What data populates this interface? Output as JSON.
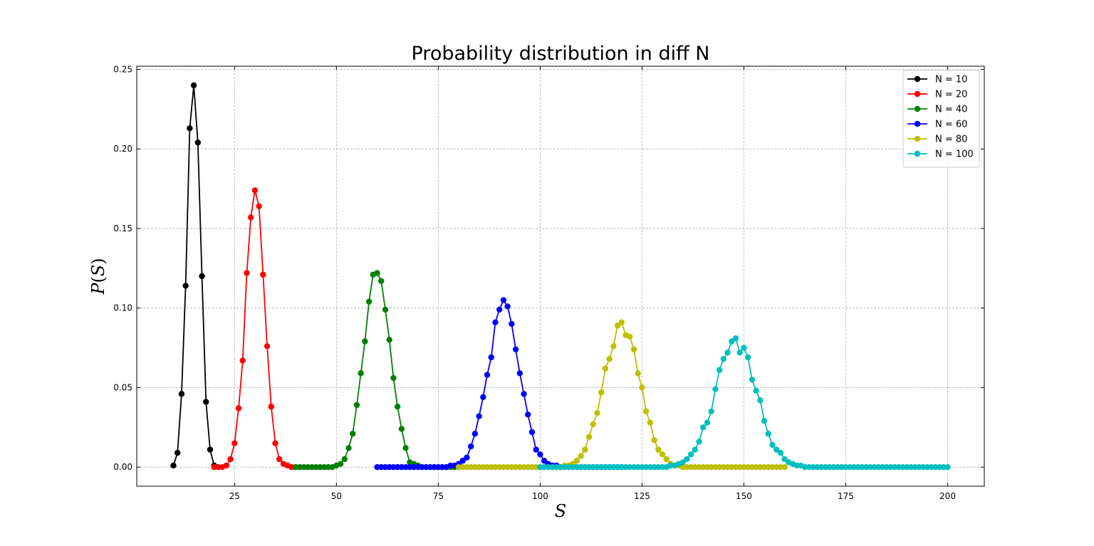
{
  "chart_data": {
    "type": "line",
    "title": "Probability distribution in diff N",
    "xlabel": "S",
    "ylabel": "P(S)",
    "xlim": [
      1,
      209
    ],
    "ylim": [
      -0.012,
      0.252
    ],
    "xticks": [
      25,
      50,
      75,
      100,
      125,
      150,
      175,
      200
    ],
    "yticks": [
      0.0,
      0.05,
      0.1,
      0.15,
      0.2,
      0.25
    ],
    "ytick_labels": [
      "0.00",
      "0.05",
      "0.10",
      "0.15",
      "0.20",
      "0.25"
    ],
    "grid": true,
    "legend_position": "top-right",
    "series": [
      {
        "name": "N = 10",
        "color": "#000000",
        "x_start": 10,
        "values": [
          0.001,
          0.009,
          0.046,
          0.114,
          0.213,
          0.24,
          0.204,
          0.12,
          0.041,
          0.011,
          0.001
        ]
      },
      {
        "name": "N = 20",
        "color": "#ff0000",
        "x_start": 20,
        "values": [
          0.0,
          0.0,
          0.0,
          0.001,
          0.005,
          0.015,
          0.037,
          0.067,
          0.122,
          0.157,
          0.174,
          0.164,
          0.121,
          0.076,
          0.038,
          0.015,
          0.005,
          0.002,
          0.001,
          0.0,
          0.0
        ]
      },
      {
        "name": "N = 40",
        "color": "#008000",
        "x_start": 40,
        "values": [
          0.0,
          0.0,
          0.0,
          0.0,
          0.0,
          0.0,
          0.0,
          0.0,
          0.0,
          0.0,
          0.001,
          0.002,
          0.005,
          0.012,
          0.021,
          0.039,
          0.059,
          0.079,
          0.104,
          0.121,
          0.122,
          0.117,
          0.099,
          0.08,
          0.056,
          0.038,
          0.024,
          0.012,
          0.003,
          0.002,
          0.001,
          0.0,
          0.0,
          0.0,
          0.0,
          0.0,
          0.0,
          0.0,
          0.0,
          0.0,
          0.0
        ]
      },
      {
        "name": "N = 60",
        "color": "#0000ff",
        "x_start": 60,
        "values": [
          0.0,
          0.0,
          0.0,
          0.0,
          0.0,
          0.0,
          0.0,
          0.0,
          0.0,
          0.0,
          0.0,
          0.0,
          0.0,
          0.0,
          0.0,
          0.0,
          0.0,
          0.0,
          0.001,
          0.001,
          0.002,
          0.004,
          0.006,
          0.013,
          0.021,
          0.032,
          0.044,
          0.058,
          0.069,
          0.091,
          0.099,
          0.105,
          0.101,
          0.09,
          0.074,
          0.059,
          0.046,
          0.033,
          0.022,
          0.011,
          0.008,
          0.004,
          0.002,
          0.001,
          0.001,
          0.0,
          0.0,
          0.0,
          0.0,
          0.0,
          0.0,
          0.0,
          0.0,
          0.0,
          0.0,
          0.0,
          0.0,
          0.0,
          0.0,
          0.0,
          0.0
        ]
      },
      {
        "name": "N = 80",
        "color": "#bfbf00",
        "x_start": 80,
        "values": [
          0.0,
          0.0,
          0.0,
          0.0,
          0.0,
          0.0,
          0.0,
          0.0,
          0.0,
          0.0,
          0.0,
          0.0,
          0.0,
          0.0,
          0.0,
          0.0,
          0.0,
          0.0,
          0.0,
          0.0,
          0.0,
          0.0,
          0.0,
          0.0,
          0.0,
          0.0,
          0.001,
          0.001,
          0.002,
          0.004,
          0.007,
          0.011,
          0.019,
          0.027,
          0.034,
          0.047,
          0.062,
          0.068,
          0.076,
          0.089,
          0.091,
          0.083,
          0.082,
          0.074,
          0.059,
          0.05,
          0.035,
          0.028,
          0.017,
          0.011,
          0.008,
          0.005,
          0.002,
          0.001,
          0.001,
          0.0,
          0.0,
          0.0,
          0.0,
          0.0,
          0.0,
          0.0,
          0.0,
          0.0,
          0.0,
          0.0,
          0.0,
          0.0,
          0.0,
          0.0,
          0.0,
          0.0,
          0.0,
          0.0,
          0.0,
          0.0,
          0.0,
          0.0,
          0.0,
          0.0,
          0.0
        ]
      },
      {
        "name": "N = 100",
        "color": "#00bfbf",
        "x_start": 100,
        "values": [
          0.0,
          0.0,
          0.0,
          0.0,
          0.0,
          0.0,
          0.0,
          0.0,
          0.0,
          0.0,
          0.0,
          0.0,
          0.0,
          0.0,
          0.0,
          0.0,
          0.0,
          0.0,
          0.0,
          0.0,
          0.0,
          0.0,
          0.0,
          0.0,
          0.0,
          0.0,
          0.0,
          0.0,
          0.0,
          0.0,
          0.0,
          0.0,
          0.001,
          0.001,
          0.002,
          0.003,
          0.005,
          0.008,
          0.011,
          0.016,
          0.025,
          0.028,
          0.035,
          0.049,
          0.061,
          0.068,
          0.072,
          0.079,
          0.081,
          0.072,
          0.075,
          0.069,
          0.055,
          0.048,
          0.042,
          0.029,
          0.021,
          0.014,
          0.011,
          0.009,
          0.005,
          0.003,
          0.002,
          0.001,
          0.001,
          0.0,
          0.0,
          0.0,
          0.0,
          0.0,
          0.0,
          0.0,
          0.0,
          0.0,
          0.0,
          0.0,
          0.0,
          0.0,
          0.0,
          0.0,
          0.0,
          0.0,
          0.0,
          0.0,
          0.0,
          0.0,
          0.0,
          0.0,
          0.0,
          0.0,
          0.0,
          0.0,
          0.0,
          0.0,
          0.0,
          0.0,
          0.0,
          0.0,
          0.0,
          0.0,
          0.0
        ]
      }
    ]
  }
}
